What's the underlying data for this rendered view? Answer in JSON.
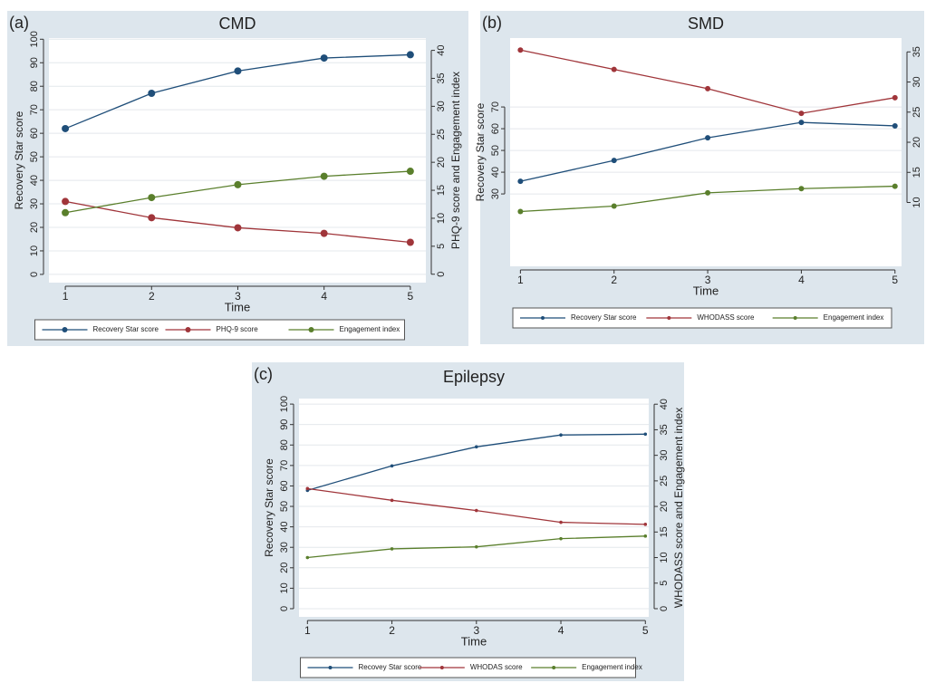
{
  "chart_data": [
    {
      "type": "line",
      "panel_label": "(a)",
      "title": "CMD",
      "xlabel": "Time",
      "ylabel": "Recovery Star score",
      "y2label": "PHQ-9 score and Engagement index",
      "x": [
        1,
        2,
        3,
        4,
        5
      ],
      "xlim": [
        0.81,
        5.18
      ],
      "xticks": [
        1,
        2,
        3,
        4,
        5
      ],
      "ylim": [
        -3.5,
        100.5
      ],
      "yticks": [
        0,
        10,
        20,
        30,
        40,
        50,
        60,
        70,
        80,
        90,
        100
      ],
      "y2lim": [
        -1.5,
        42.2
      ],
      "y2ticks": [
        0,
        5,
        10,
        15,
        20,
        25,
        30,
        35,
        40
      ],
      "grid": true,
      "series": [
        {
          "name": "Recovery Star score",
          "color": "#1f4e79",
          "values": [
            62,
            77,
            86.5,
            92,
            93.4
          ]
        },
        {
          "name": "PHQ-9 score",
          "color": "#a0353a",
          "axis": "y2",
          "values": [
            13,
            10.1,
            8.3,
            7.3,
            5.7
          ]
        },
        {
          "name": "Engagement index",
          "color": "#5a7f2c",
          "axis": "y2",
          "values": [
            11,
            13.7,
            16,
            17.5,
            18.4
          ]
        }
      ]
    },
    {
      "type": "line",
      "panel_label": "(b)",
      "title": "SMD",
      "xlabel": "Time",
      "ylabel": "Recovery Star score",
      "y2label": "WHODAS score and Engagement index",
      "x": [
        1,
        2,
        3,
        4,
        5
      ],
      "xlim": [
        0.89,
        5.07
      ],
      "xticks": [
        1,
        2,
        3,
        4,
        5
      ],
      "ylim": [
        -3.3,
        101.7
      ],
      "yticks": [
        30,
        40,
        50,
        60,
        70
      ],
      "y2lim": [
        -0.6,
        37.3
      ],
      "y2ticks": [
        10,
        15,
        20,
        25,
        30,
        35
      ],
      "grid": true,
      "series": [
        {
          "name": "Recovery Star score",
          "color": "#1f4e79",
          "values": [
            35.8,
            45.4,
            55.8,
            62.9,
            61.3
          ]
        },
        {
          "name": "WHODASS score",
          "color": "#a0353a",
          "axis": "y2",
          "values": [
            35.3,
            32.1,
            28.9,
            24.8,
            27.4
          ]
        },
        {
          "name": "Engagement index",
          "color": "#5a7f2c",
          "axis": "y2",
          "values": [
            8.5,
            9.4,
            11.6,
            12.3,
            12.7
          ]
        }
      ]
    },
    {
      "type": "line",
      "panel_label": "(c)",
      "title": "Epilepsy",
      "xlabel": "Time",
      "ylabel": "Recovery Star score",
      "y2label": "WHODASS score and Engagement index",
      "x": [
        1,
        2,
        3,
        4,
        5
      ],
      "xlim": [
        0.9,
        5.04
      ],
      "xticks": [
        1,
        2,
        3,
        4,
        5
      ],
      "ylim": [
        -4,
        102.7
      ],
      "yticks": [
        0,
        10,
        20,
        30,
        40,
        50,
        60,
        70,
        80,
        90,
        100
      ],
      "y2lim": [
        -1.6,
        41.1
      ],
      "y2ticks": [
        0,
        5,
        10,
        15,
        20,
        25,
        30,
        35,
        40
      ],
      "grid": true,
      "series": [
        {
          "name": "Recovey Star score",
          "color": "#1f4e79",
          "values": [
            57.8,
            69.8,
            79.1,
            84.9,
            85.3
          ]
        },
        {
          "name": "WHODAS score",
          "color": "#a0353a",
          "axis": "y2",
          "values": [
            23.5,
            21.2,
            19.2,
            16.9,
            16.5
          ]
        },
        {
          "name": "Engagement index",
          "color": "#5a7f2c",
          "axis": "y2",
          "values": [
            10,
            11.7,
            12.1,
            13.7,
            14.2
          ]
        }
      ]
    }
  ]
}
